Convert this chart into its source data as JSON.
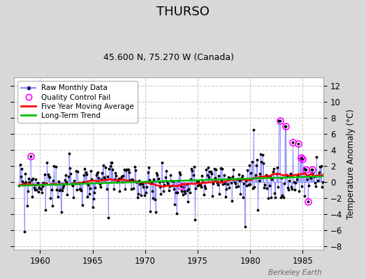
{
  "title": "THURSO",
  "subtitle": "45.600 N, 75.270 W (Canada)",
  "ylabel": "Temperature Anomaly (°C)",
  "watermark": "Berkeley Earth",
  "xlim": [
    1957.5,
    1987.0
  ],
  "ylim": [
    -8.5,
    13.0
  ],
  "yticks": [
    -8,
    -6,
    -4,
    -2,
    0,
    2,
    4,
    6,
    8,
    10,
    12
  ],
  "xticks": [
    1960,
    1965,
    1970,
    1975,
    1980,
    1985
  ],
  "fig_bg_color": "#d8d8d8",
  "plot_bg_color": "#ffffff",
  "grid_color": "#cccccc",
  "stem_color": "#8888ff",
  "stem_fill_color": "#aaaaff",
  "dot_color": "#000000",
  "ma_color": "#ff0000",
  "trend_color": "#00bb00",
  "qc_color": "#ff00ff",
  "legend_bg": "#ffffff",
  "title_fontsize": 13,
  "subtitle_fontsize": 9,
  "ylabel_fontsize": 8.5,
  "tick_fontsize": 8.5,
  "legend_fontsize": 7.5
}
